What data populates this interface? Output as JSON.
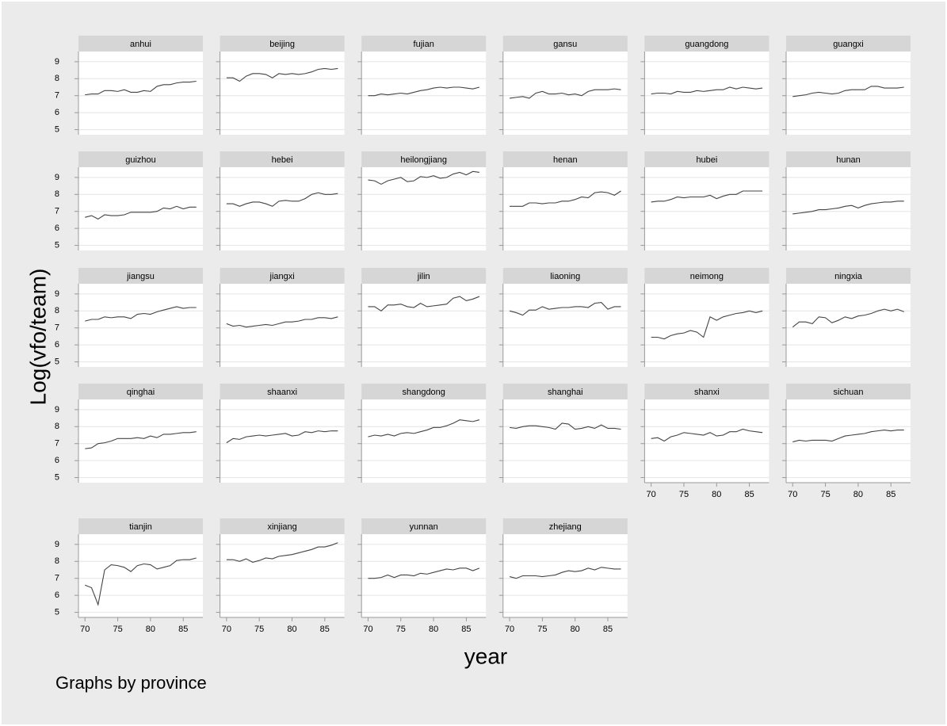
{
  "chart_data": {
    "type": "line",
    "layout": "facet",
    "columns": 6,
    "ylabel": "Log(vfo/team)",
    "xlabel": "year",
    "note": "Graphs by province",
    "color": "#444444",
    "grid": true,
    "x": [
      70,
      71,
      72,
      73,
      74,
      75,
      76,
      77,
      78,
      79,
      80,
      81,
      82,
      83,
      84,
      85,
      86,
      87
    ],
    "xlim": [
      69,
      88
    ],
    "xticks": [
      70,
      75,
      80,
      85
    ],
    "ylim": [
      4.7,
      9.6
    ],
    "yticks": [
      5,
      6,
      7,
      8,
      9
    ],
    "series": [
      {
        "name": "anhui",
        "values": [
          7.05,
          7.1,
          7.1,
          7.3,
          7.3,
          7.25,
          7.35,
          7.2,
          7.2,
          7.3,
          7.25,
          7.55,
          7.65,
          7.65,
          7.75,
          7.8,
          7.8,
          7.85
        ]
      },
      {
        "name": "beijing",
        "values": [
          8.05,
          8.05,
          7.85,
          8.15,
          8.3,
          8.3,
          8.25,
          8.05,
          8.3,
          8.25,
          8.3,
          8.25,
          8.3,
          8.4,
          8.55,
          8.6,
          8.55,
          8.6
        ]
      },
      {
        "name": "fujian",
        "values": [
          7.0,
          7.0,
          7.1,
          7.05,
          7.1,
          7.15,
          7.1,
          7.2,
          7.3,
          7.35,
          7.45,
          7.5,
          7.45,
          7.5,
          7.5,
          7.45,
          7.4,
          7.5
        ]
      },
      {
        "name": "gansu",
        "values": [
          6.85,
          6.9,
          6.95,
          6.85,
          7.15,
          7.25,
          7.1,
          7.1,
          7.15,
          7.05,
          7.1,
          7.0,
          7.25,
          7.35,
          7.35,
          7.35,
          7.4,
          7.35
        ]
      },
      {
        "name": "guangdong",
        "values": [
          7.1,
          7.15,
          7.15,
          7.1,
          7.25,
          7.2,
          7.2,
          7.3,
          7.25,
          7.3,
          7.35,
          7.35,
          7.5,
          7.4,
          7.5,
          7.45,
          7.4,
          7.45
        ]
      },
      {
        "name": "guangxi",
        "values": [
          6.95,
          7.0,
          7.05,
          7.15,
          7.2,
          7.15,
          7.1,
          7.15,
          7.3,
          7.35,
          7.35,
          7.35,
          7.55,
          7.55,
          7.45,
          7.45,
          7.45,
          7.5
        ]
      },
      {
        "name": "guizhou",
        "values": [
          6.65,
          6.75,
          6.55,
          6.8,
          6.75,
          6.75,
          6.8,
          6.95,
          6.95,
          6.95,
          6.95,
          7.0,
          7.2,
          7.15,
          7.3,
          7.15,
          7.25,
          7.25
        ]
      },
      {
        "name": "hebei",
        "values": [
          7.45,
          7.45,
          7.3,
          7.45,
          7.55,
          7.55,
          7.45,
          7.3,
          7.6,
          7.65,
          7.6,
          7.6,
          7.75,
          8.0,
          8.1,
          8.0,
          8.0,
          8.05
        ]
      },
      {
        "name": "heilongjiang",
        "values": [
          8.85,
          8.8,
          8.6,
          8.8,
          8.9,
          9.0,
          8.75,
          8.8,
          9.05,
          9.0,
          9.1,
          8.95,
          9.0,
          9.2,
          9.3,
          9.15,
          9.35,
          9.3
        ]
      },
      {
        "name": "henan",
        "values": [
          7.3,
          7.3,
          7.3,
          7.5,
          7.5,
          7.45,
          7.5,
          7.5,
          7.6,
          7.6,
          7.7,
          7.85,
          7.8,
          8.1,
          8.15,
          8.1,
          7.95,
          8.2
        ]
      },
      {
        "name": "hubei",
        "values": [
          7.55,
          7.6,
          7.6,
          7.7,
          7.85,
          7.8,
          7.85,
          7.85,
          7.85,
          7.95,
          7.75,
          7.9,
          8.0,
          8.0,
          8.2,
          8.2,
          8.2,
          8.2
        ]
      },
      {
        "name": "hunan",
        "values": [
          6.85,
          6.9,
          6.95,
          7.0,
          7.1,
          7.1,
          7.15,
          7.2,
          7.3,
          7.35,
          7.2,
          7.35,
          7.45,
          7.5,
          7.55,
          7.55,
          7.6,
          7.6
        ]
      },
      {
        "name": "jiangsu",
        "values": [
          7.4,
          7.5,
          7.5,
          7.65,
          7.6,
          7.65,
          7.65,
          7.55,
          7.8,
          7.85,
          7.8,
          7.95,
          8.05,
          8.15,
          8.25,
          8.15,
          8.2,
          8.2
        ]
      },
      {
        "name": "jiangxi",
        "values": [
          7.25,
          7.1,
          7.15,
          7.05,
          7.1,
          7.15,
          7.2,
          7.15,
          7.25,
          7.35,
          7.35,
          7.4,
          7.5,
          7.5,
          7.6,
          7.6,
          7.55,
          7.65
        ]
      },
      {
        "name": "jilin",
        "values": [
          8.25,
          8.25,
          8.0,
          8.35,
          8.35,
          8.4,
          8.25,
          8.2,
          8.45,
          8.25,
          8.3,
          8.35,
          8.4,
          8.75,
          8.85,
          8.6,
          8.7,
          8.85
        ]
      },
      {
        "name": "liaoning",
        "values": [
          8.0,
          7.9,
          7.75,
          8.05,
          8.05,
          8.25,
          8.1,
          8.15,
          8.2,
          8.2,
          8.25,
          8.25,
          8.2,
          8.45,
          8.5,
          8.1,
          8.25,
          8.25
        ]
      },
      {
        "name": "neimong",
        "values": [
          6.45,
          6.45,
          6.35,
          6.55,
          6.65,
          6.7,
          6.85,
          6.75,
          6.45,
          7.65,
          7.45,
          7.65,
          7.75,
          7.85,
          7.9,
          8.0,
          7.9,
          8.0
        ]
      },
      {
        "name": "ningxia",
        "values": [
          7.05,
          7.35,
          7.35,
          7.25,
          7.65,
          7.6,
          7.3,
          7.45,
          7.65,
          7.55,
          7.7,
          7.75,
          7.85,
          8.0,
          8.1,
          8.0,
          8.1,
          7.95
        ]
      },
      {
        "name": "qinghai",
        "values": [
          6.7,
          6.75,
          7.0,
          7.05,
          7.15,
          7.3,
          7.3,
          7.3,
          7.35,
          7.3,
          7.45,
          7.35,
          7.55,
          7.55,
          7.6,
          7.65,
          7.65,
          7.7
        ]
      },
      {
        "name": "shaanxi",
        "values": [
          7.05,
          7.3,
          7.25,
          7.4,
          7.45,
          7.5,
          7.45,
          7.5,
          7.55,
          7.6,
          7.45,
          7.5,
          7.7,
          7.65,
          7.75,
          7.7,
          7.75,
          7.75
        ]
      },
      {
        "name": "shangdong",
        "values": [
          7.4,
          7.5,
          7.45,
          7.55,
          7.45,
          7.6,
          7.65,
          7.6,
          7.7,
          7.8,
          7.95,
          7.95,
          8.05,
          8.2,
          8.4,
          8.35,
          8.3,
          8.4
        ]
      },
      {
        "name": "shanghai",
        "values": [
          7.95,
          7.9,
          8.0,
          8.05,
          8.05,
          8.0,
          7.95,
          7.85,
          8.2,
          8.15,
          7.85,
          7.9,
          8.0,
          7.9,
          8.1,
          7.9,
          7.9,
          7.85
        ]
      },
      {
        "name": "shanxi",
        "values": [
          7.3,
          7.35,
          7.15,
          7.4,
          7.5,
          7.65,
          7.6,
          7.55,
          7.5,
          7.65,
          7.45,
          7.5,
          7.7,
          7.7,
          7.85,
          7.75,
          7.7,
          7.65
        ]
      },
      {
        "name": "sichuan",
        "values": [
          7.1,
          7.2,
          7.15,
          7.2,
          7.2,
          7.2,
          7.15,
          7.3,
          7.45,
          7.5,
          7.55,
          7.6,
          7.7,
          7.75,
          7.8,
          7.75,
          7.8,
          7.8
        ]
      },
      {
        "name": "tianjin",
        "values": [
          6.6,
          6.45,
          5.45,
          7.5,
          7.8,
          7.75,
          7.65,
          7.4,
          7.75,
          7.85,
          7.8,
          7.55,
          7.65,
          7.75,
          8.05,
          8.1,
          8.1,
          8.2
        ]
      },
      {
        "name": "xinjiang",
        "values": [
          8.1,
          8.1,
          8.0,
          8.15,
          7.95,
          8.05,
          8.2,
          8.15,
          8.3,
          8.35,
          8.4,
          8.5,
          8.6,
          8.7,
          8.85,
          8.85,
          8.95,
          9.1
        ]
      },
      {
        "name": "yunnan",
        "values": [
          7.0,
          7.0,
          7.05,
          7.2,
          7.05,
          7.2,
          7.2,
          7.15,
          7.3,
          7.25,
          7.35,
          7.45,
          7.55,
          7.5,
          7.6,
          7.6,
          7.45,
          7.6
        ]
      },
      {
        "name": "zhejiang",
        "values": [
          7.1,
          7.0,
          7.15,
          7.15,
          7.15,
          7.1,
          7.15,
          7.2,
          7.35,
          7.45,
          7.4,
          7.45,
          7.6,
          7.5,
          7.65,
          7.6,
          7.55,
          7.55
        ]
      }
    ]
  }
}
